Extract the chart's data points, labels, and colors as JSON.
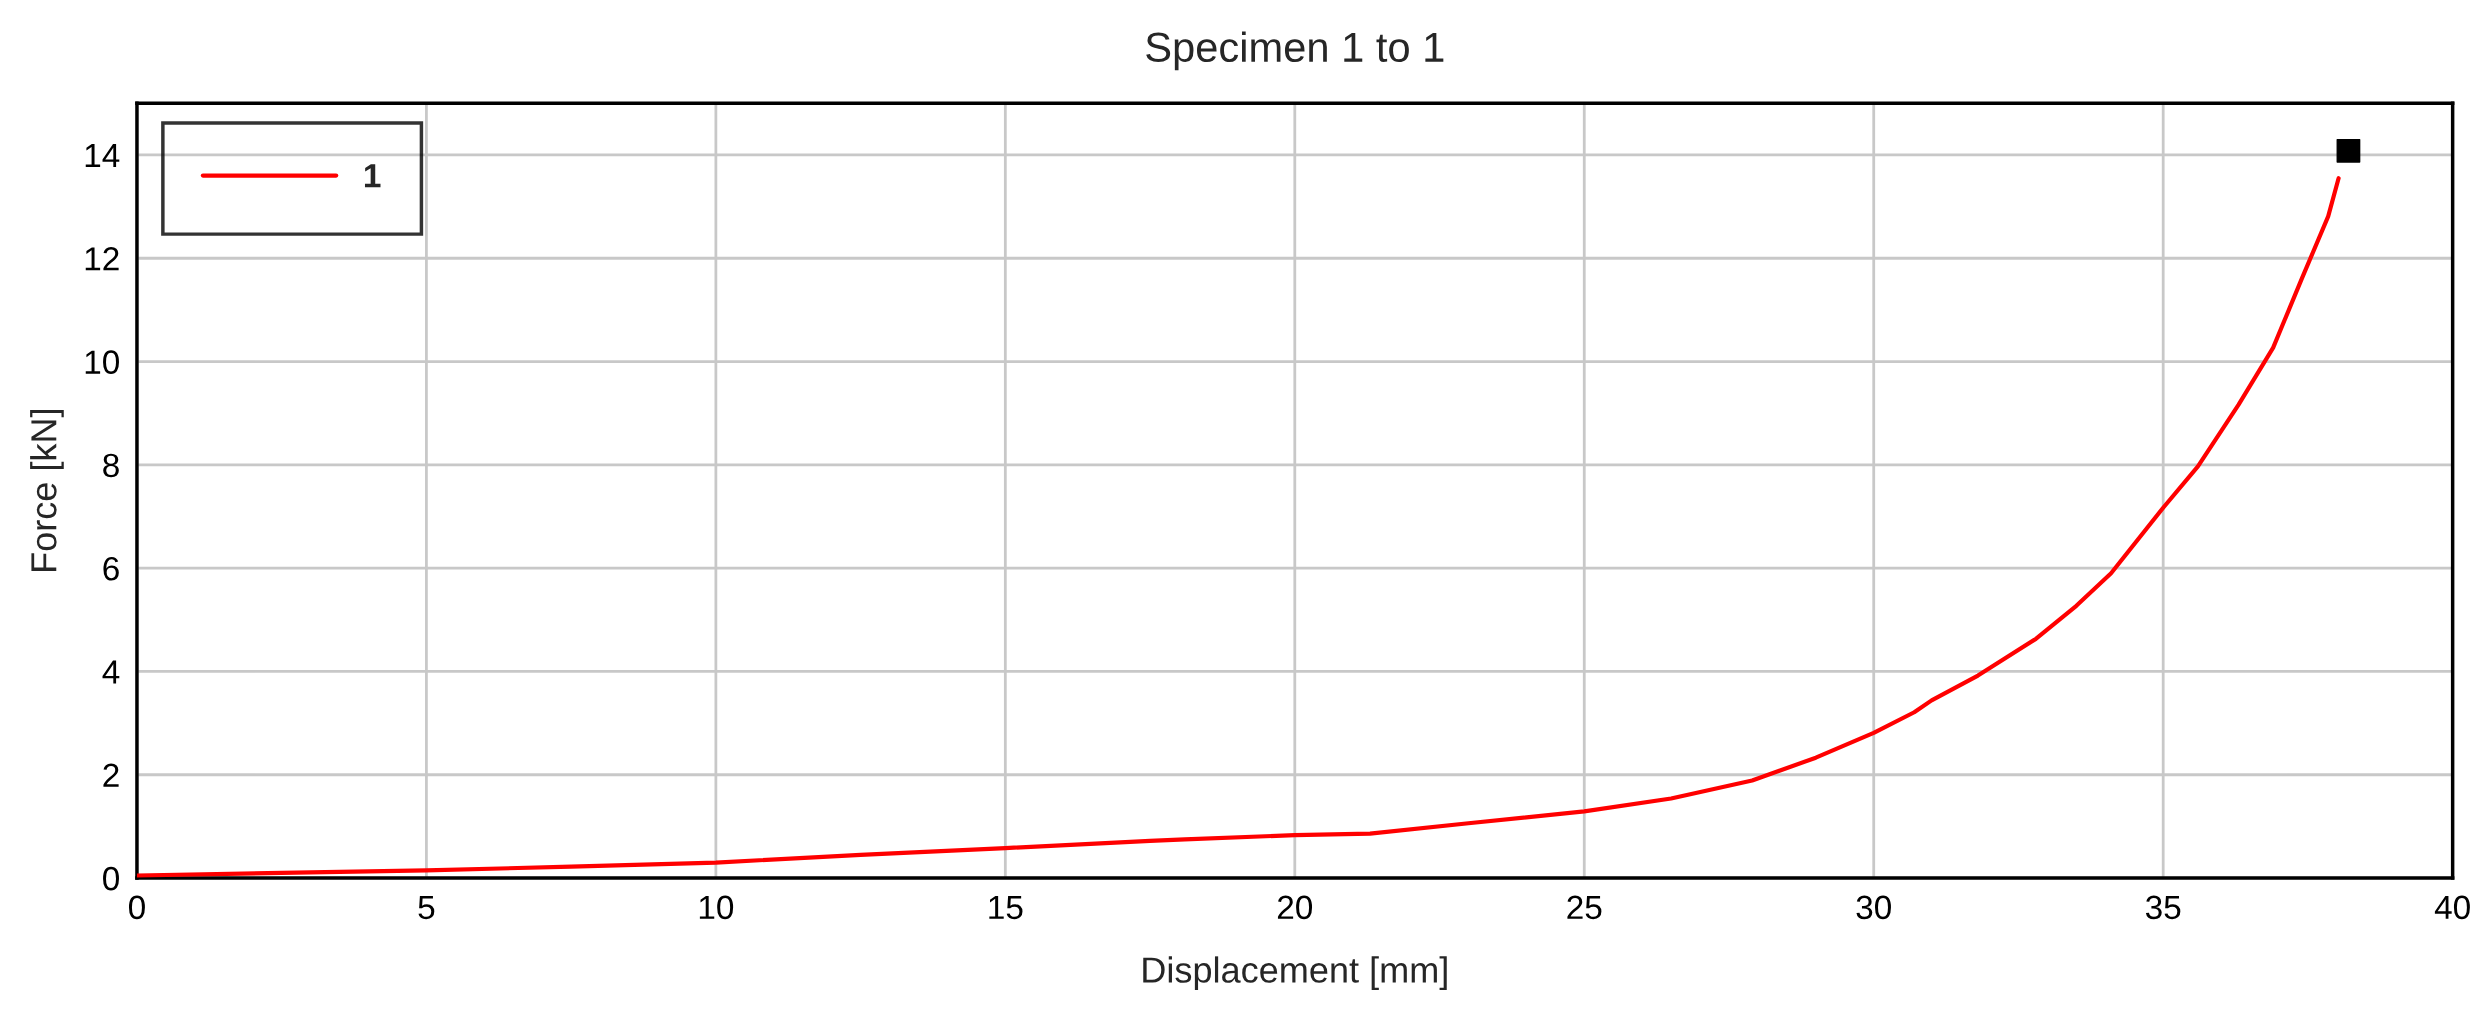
{
  "chart_data": {
    "type": "line",
    "title": "Specimen 1 to 1",
    "xlabel": "Displacement [mm]",
    "ylabel": "Force [kN]",
    "xlim": [
      0,
      40
    ],
    "xticks": [
      0,
      5,
      10,
      15,
      20,
      25,
      30,
      35,
      40
    ],
    "ylim": [
      0,
      15
    ],
    "yticks": [
      0,
      2,
      4,
      6,
      8,
      10,
      12,
      14
    ],
    "grid": true,
    "legend": "top left",
    "series": [
      {
        "name": "1",
        "color": "#ff0000",
        "x": [
          0,
          2.5,
          5,
          7.5,
          10,
          12.5,
          15,
          17.5,
          18.1,
          20,
          21.3,
          23.0,
          25,
          26.5,
          27.9,
          29.0,
          30,
          30.7,
          31.0,
          31.8,
          32.8,
          33.5,
          34.1,
          35,
          35.6,
          36.3,
          36.9,
          37.4,
          37.85,
          38.03
        ],
        "values": [
          0.05,
          0.1,
          0.15,
          0.22,
          0.3,
          0.45,
          0.58,
          0.72,
          0.75,
          0.83,
          0.86,
          1.06,
          1.29,
          1.54,
          1.89,
          2.33,
          2.81,
          3.21,
          3.44,
          3.92,
          4.63,
          5.27,
          5.9,
          7.17,
          7.97,
          9.16,
          10.27,
          11.62,
          12.81,
          13.55
        ]
      },
      {
        "type": "scatter",
        "marker": "square",
        "color": "#000000",
        "x": [
          38.2
        ],
        "values": [
          14.08
        ]
      }
    ]
  }
}
